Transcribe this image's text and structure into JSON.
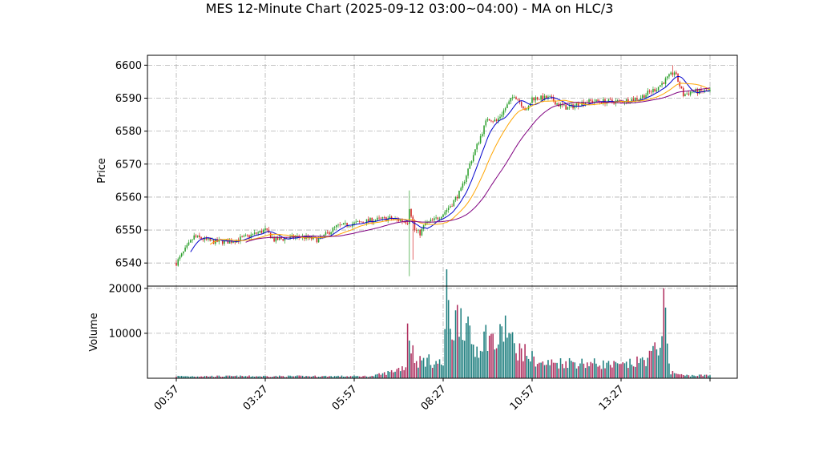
{
  "chart_data": {
    "type": "candlestick",
    "title": "MES 12-Minute Chart (2025-09-12 03:00~04:00) - MA on HLC/3",
    "price_panel": {
      "ylabel": "Price",
      "ylim": [
        6533,
        6603
      ],
      "yticks": [
        6540,
        6550,
        6560,
        6570,
        6580,
        6590,
        6600
      ]
    },
    "volume_panel": {
      "ylabel": "Volume",
      "ylim": [
        0,
        20500
      ],
      "yticks": [
        10000,
        20000
      ]
    },
    "x_tick_labels": [
      "00:57",
      "03:27",
      "05:57",
      "08:27",
      "10:57",
      "13:27"
    ],
    "grid": true,
    "colors": {
      "up": "#2ca02c",
      "down": "#d62728",
      "vol_up": "#1f7f7f",
      "vol_down": "#b03060",
      "ma_fast": "#0000cc",
      "ma_mid": "#ffa500",
      "ma_slow": "#800080",
      "grid": "#b0b0b0"
    },
    "price_anchors": [
      [
        0,
        6540
      ],
      [
        10,
        6548
      ],
      [
        20,
        6546.5
      ],
      [
        30,
        6546.5
      ],
      [
        40,
        6548
      ],
      [
        50,
        6550
      ],
      [
        55,
        6547
      ],
      [
        70,
        6548
      ],
      [
        80,
        6547
      ],
      [
        90,
        6551
      ],
      [
        100,
        6552
      ],
      [
        110,
        6553
      ],
      [
        120,
        6553.5
      ],
      [
        130,
        6552.5
      ],
      [
        131,
        6557
      ],
      [
        134,
        6550
      ],
      [
        137,
        6549
      ],
      [
        140,
        6552
      ],
      [
        145,
        6553
      ],
      [
        150,
        6555
      ],
      [
        155,
        6558
      ],
      [
        160,
        6562
      ],
      [
        165,
        6570
      ],
      [
        170,
        6577
      ],
      [
        175,
        6584
      ],
      [
        180,
        6583
      ],
      [
        185,
        6587
      ],
      [
        190,
        6591
      ],
      [
        193,
        6589
      ],
      [
        197,
        6586
      ],
      [
        200,
        6590
      ],
      [
        210,
        6590
      ],
      [
        215,
        6588
      ],
      [
        220,
        6587
      ],
      [
        230,
        6589
      ],
      [
        240,
        6589
      ],
      [
        250,
        6589
      ],
      [
        260,
        6590
      ],
      [
        270,
        6593
      ],
      [
        280,
        6598
      ],
      [
        285,
        6591
      ],
      [
        290,
        6592
      ],
      [
        300,
        6592
      ]
    ],
    "volume_anchors": [
      [
        0,
        500
      ],
      [
        110,
        500
      ],
      [
        120,
        1500
      ],
      [
        129,
        3000
      ],
      [
        130,
        14000
      ],
      [
        132,
        8000
      ],
      [
        135,
        4000
      ],
      [
        140,
        4500
      ],
      [
        150,
        3500
      ],
      [
        152,
        20000
      ],
      [
        155,
        12000
      ],
      [
        160,
        17000
      ],
      [
        163,
        12000
      ],
      [
        168,
        7000
      ],
      [
        175,
        11000
      ],
      [
        180,
        8000
      ],
      [
        185,
        13000
      ],
      [
        190,
        7500
      ],
      [
        195,
        6500
      ],
      [
        200,
        5000
      ],
      [
        205,
        3500
      ],
      [
        220,
        4000
      ],
      [
        240,
        3500
      ],
      [
        250,
        3000
      ],
      [
        260,
        4000
      ],
      [
        265,
        5000
      ],
      [
        270,
        7000
      ],
      [
        272,
        10000
      ],
      [
        274,
        17000
      ],
      [
        276,
        8500
      ],
      [
        278,
        1500
      ],
      [
        285,
        700
      ],
      [
        300,
        700
      ]
    ]
  }
}
